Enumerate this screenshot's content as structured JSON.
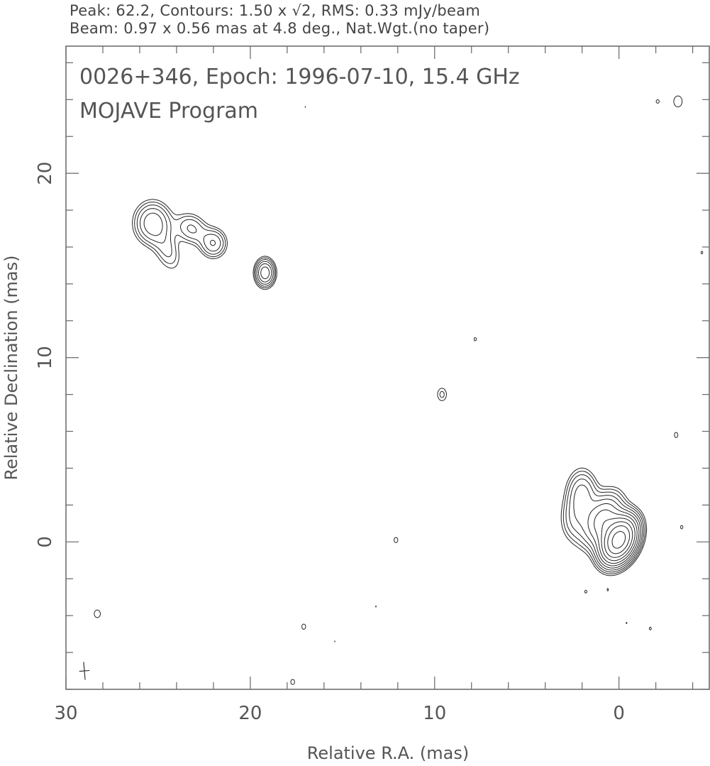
{
  "header": {
    "line1": "Peak: 62.2, Contours: 1.50 x √2, RMS: 0.33 mJy/beam",
    "line2": "Beam: 0.97 x 0.56 mas at 4.8 deg., Nat.Wgt.(no taper)"
  },
  "chart_data": {
    "type": "contour",
    "title": "0026+346, Epoch: 1996-07-10, 15.4 GHz",
    "subtitle": "MOJAVE Program",
    "xlabel": "Relative R.A. (mas)",
    "ylabel": "Relative Declination (mas)",
    "xlim": [
      30,
      -4.9
    ],
    "ylim": [
      -8.0,
      26.9
    ],
    "x_ticks": [
      "30",
      "20",
      "10",
      "0"
    ],
    "x_tick_values": [
      30,
      20,
      10,
      0
    ],
    "y_ticks": [
      "0",
      "10",
      "20"
    ],
    "y_tick_values": [
      0,
      10,
      20
    ],
    "peak": 62.2,
    "contour_base": 1.5,
    "contour_factor": 1.41421356,
    "line_color": "#222222",
    "beam": {
      "major": 0.97,
      "minor": 0.56,
      "pa": 4.8,
      "ra": 29.0,
      "dec": -7.0
    },
    "components": [
      {
        "ra": 0.0,
        "dec": 0.1,
        "flux": 58,
        "smaj": 0.75,
        "smin": 0.5,
        "pa": -25
      },
      {
        "ra": 0.9,
        "dec": 1.2,
        "flux": 14,
        "smaj": 0.9,
        "smin": 0.55,
        "pa": -25
      },
      {
        "ra": 2.0,
        "dec": 2.6,
        "flux": 7,
        "smaj": 0.8,
        "smin": 0.5,
        "pa": 0
      },
      {
        "ra": 2.4,
        "dec": 1.2,
        "flux": 4,
        "smaj": 0.8,
        "smin": 0.5,
        "pa": 0
      },
      {
        "ra": 25.3,
        "dec": 17.3,
        "flux": 8,
        "smaj": 0.7,
        "smin": 0.6,
        "pa": 0
      },
      {
        "ra": 24.5,
        "dec": 15.8,
        "flux": 3.2,
        "smaj": 0.8,
        "smin": 0.45,
        "pa": 20
      },
      {
        "ra": 23.2,
        "dec": 17.0,
        "flux": 4.5,
        "smaj": 0.6,
        "smin": 0.5,
        "pa": 50
      },
      {
        "ra": 22.0,
        "dec": 16.2,
        "flux": 6,
        "smaj": 0.5,
        "smin": 0.45,
        "pa": 0
      },
      {
        "ra": 19.2,
        "dec": 14.6,
        "flux": 11,
        "smaj": 0.45,
        "smin": 0.32,
        "pa": 0
      },
      {
        "ra": 9.6,
        "dec": 8.0,
        "flux": 2.4,
        "smaj": 0.35,
        "smin": 0.25,
        "pa": 0
      },
      {
        "ra": 7.8,
        "dec": 11.0,
        "flux": 1.6,
        "smaj": 0.3,
        "smin": 0.2,
        "pa": 0
      },
      {
        "ra": 12.1,
        "dec": 0.1,
        "flux": 1.7,
        "smaj": 0.3,
        "smin": 0.22,
        "pa": 0
      },
      {
        "ra": 17.1,
        "dec": -4.6,
        "flux": 1.7,
        "smaj": 0.3,
        "smin": 0.22,
        "pa": 0
      },
      {
        "ra": 15.4,
        "dec": -5.4,
        "flux": 1.55,
        "smaj": 0.2,
        "smin": 0.15,
        "pa": 0
      },
      {
        "ra": 17.7,
        "dec": -7.6,
        "flux": 1.7,
        "smaj": 0.3,
        "smin": 0.22,
        "pa": 0
      },
      {
        "ra": 13.2,
        "dec": -3.5,
        "flux": 1.55,
        "smaj": 0.25,
        "smin": 0.15,
        "pa": 0
      },
      {
        "ra": 28.3,
        "dec": -3.9,
        "flux": 1.8,
        "smaj": 0.35,
        "smin": 0.28,
        "pa": 0
      },
      {
        "ra": -3.2,
        "dec": 23.9,
        "flux": 2.0,
        "smaj": 0.4,
        "smin": 0.3,
        "pa": 0
      },
      {
        "ra": -2.1,
        "dec": 23.9,
        "flux": 1.65,
        "smaj": 0.25,
        "smin": 0.2,
        "pa": 0
      },
      {
        "ra": 17.0,
        "dec": 23.6,
        "flux": 1.55,
        "smaj": 0.2,
        "smin": 0.15,
        "pa": 0
      },
      {
        "ra": -4.5,
        "dec": 15.7,
        "flux": 1.6,
        "smaj": 0.25,
        "smin": 0.18,
        "pa": 0
      },
      {
        "ra": -3.1,
        "dec": 5.8,
        "flux": 1.7,
        "smaj": 0.3,
        "smin": 0.2,
        "pa": 0
      },
      {
        "ra": -3.4,
        "dec": 0.8,
        "flux": 1.6,
        "smaj": 0.3,
        "smin": 0.2,
        "pa": 0
      },
      {
        "ra": -1.7,
        "dec": -4.7,
        "flux": 1.6,
        "smaj": 0.25,
        "smin": 0.2,
        "pa": 0
      },
      {
        "ra": -0.4,
        "dec": -4.4,
        "flux": 1.55,
        "smaj": 0.25,
        "smin": 0.18,
        "pa": 0
      },
      {
        "ra": 1.8,
        "dec": -2.7,
        "flux": 1.6,
        "smaj": 0.25,
        "smin": 0.2,
        "pa": 0
      },
      {
        "ra": 0.6,
        "dec": -2.6,
        "flux": 1.55,
        "smaj": 0.25,
        "smin": 0.15,
        "pa": 0
      }
    ]
  }
}
